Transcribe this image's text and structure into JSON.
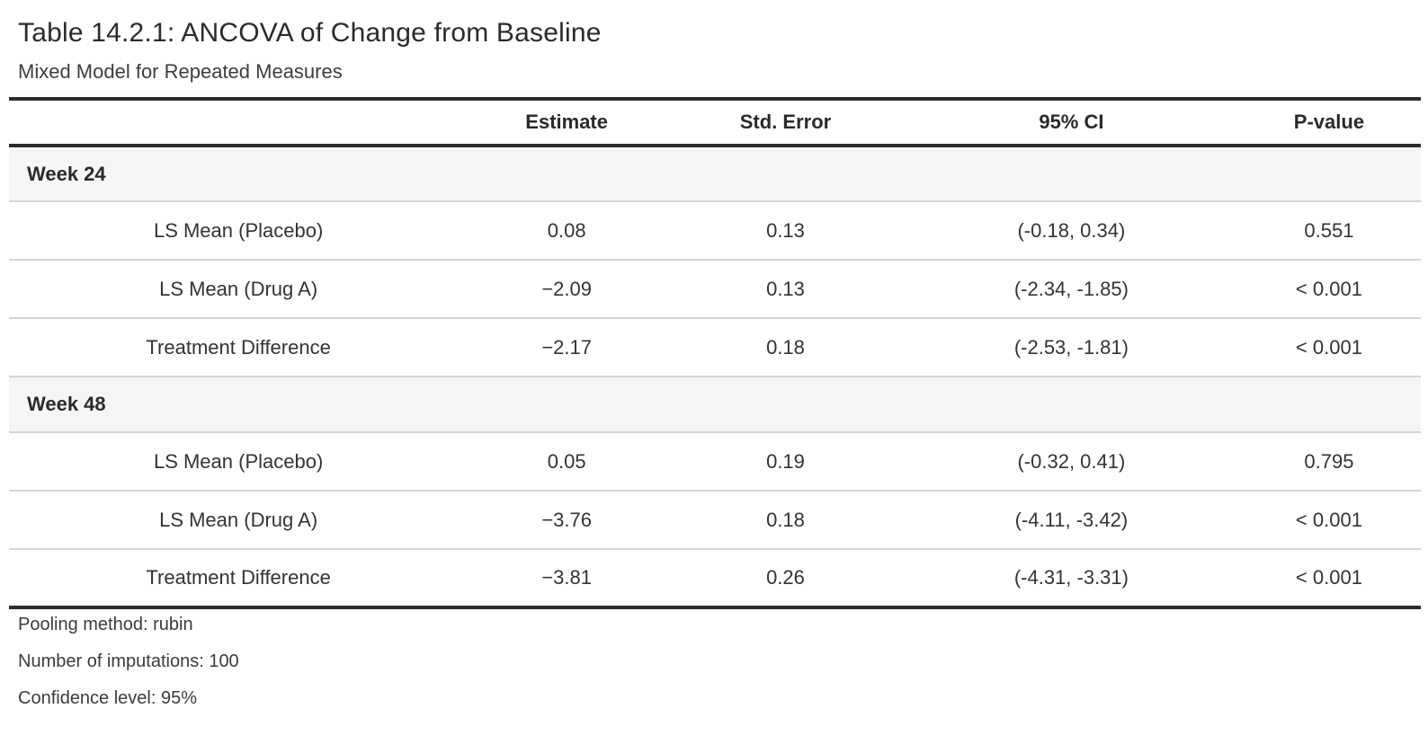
{
  "title": "Table 14.2.1: ANCOVA of Change from Baseline",
  "subtitle": "Mixed Model for Repeated Measures",
  "table": {
    "columns": [
      "",
      "Estimate",
      "Std. Error",
      "95% CI",
      "P-value"
    ],
    "groups": [
      {
        "label": "Week 24",
        "rows": [
          {
            "label": "LS Mean (Placebo)",
            "estimate": "0.08",
            "std_error": "0.13",
            "ci": "(-0.18, 0.34)",
            "p_value": "0.551"
          },
          {
            "label": "LS Mean (Drug A)",
            "estimate": "−2.09",
            "std_error": "0.13",
            "ci": "(-2.34, -1.85)",
            "p_value": "< 0.001"
          },
          {
            "label": "Treatment Difference",
            "estimate": "−2.17",
            "std_error": "0.18",
            "ci": "(-2.53, -1.81)",
            "p_value": "< 0.001"
          }
        ]
      },
      {
        "label": "Week 48",
        "rows": [
          {
            "label": "LS Mean (Placebo)",
            "estimate": "0.05",
            "std_error": "0.19",
            "ci": "(-0.32, 0.41)",
            "p_value": "0.795"
          },
          {
            "label": "LS Mean (Drug A)",
            "estimate": "−3.76",
            "std_error": "0.18",
            "ci": "(-4.11, -3.42)",
            "p_value": "< 0.001"
          },
          {
            "label": "Treatment Difference",
            "estimate": "−3.81",
            "std_error": "0.26",
            "ci": "(-4.31, -3.31)",
            "p_value": "< 0.001"
          }
        ]
      }
    ]
  },
  "footnotes": [
    "Pooling method: rubin",
    "Number of imputations: 100",
    "Confidence level: 95%"
  ],
  "colors": {
    "thick_rule": "#2b2b2b",
    "row_separator": "#d4d4d4",
    "group_band_background": "#f5f5f5",
    "title_text": "#2b2b2b",
    "body_text": "#333333",
    "background": "#ffffff"
  }
}
